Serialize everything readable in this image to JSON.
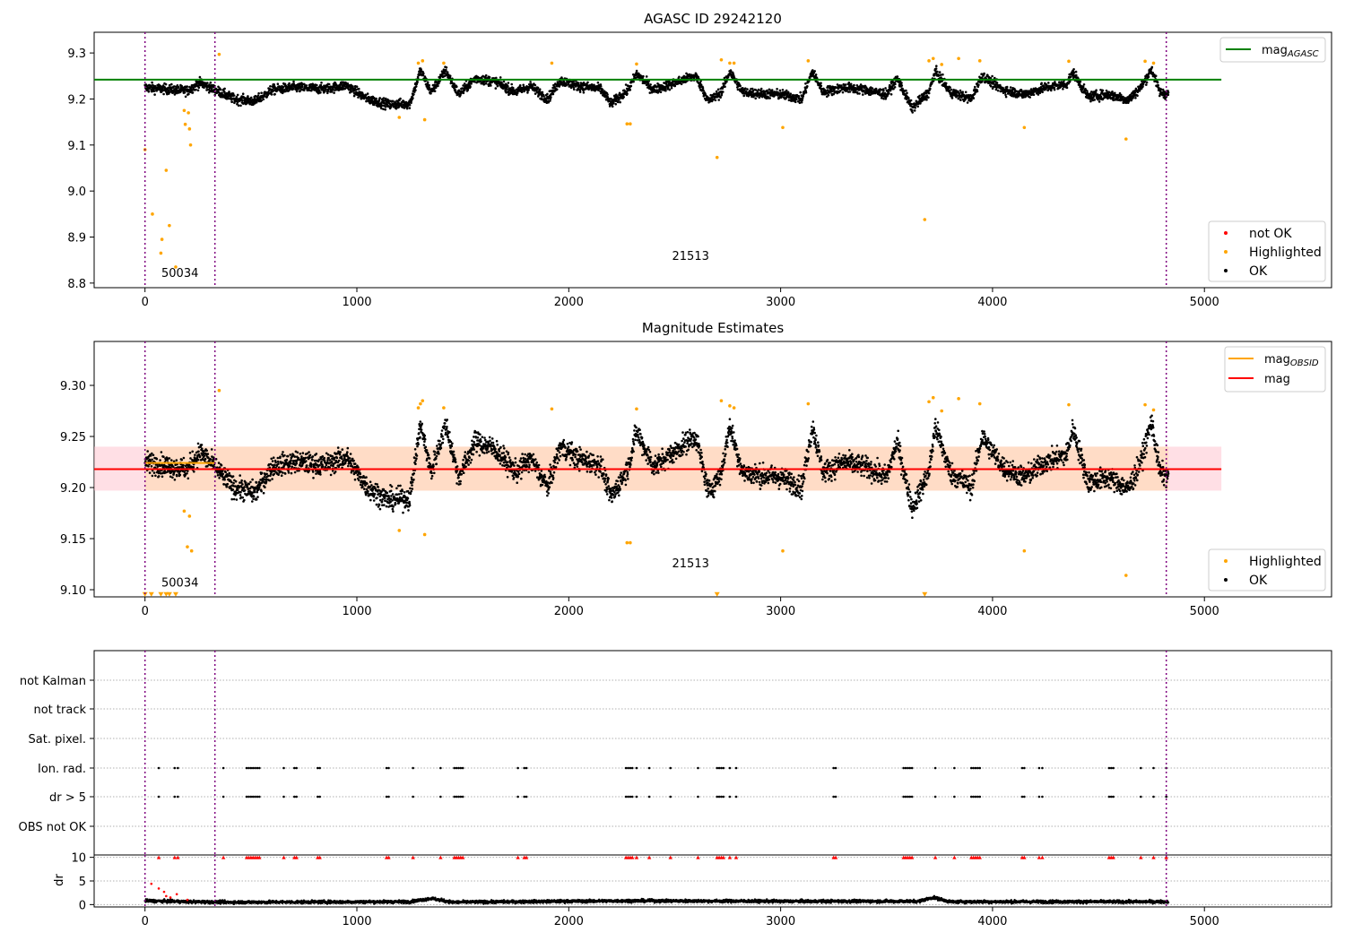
{
  "colors": {
    "ok": "#000000",
    "highlighted": "#ffa500",
    "not_ok": "#ff0000",
    "agasc_line": "#008000",
    "mag_line": "#ff0000",
    "mag_obsid_line": "#ffa500",
    "band_fill": "#ffc0cb",
    "band_inner_fill": "#ffdab9",
    "obsid_boundary": "#800080",
    "grid": "#b0b0b0"
  },
  "chart_data": [
    {
      "id": "agasc_panel",
      "type": "scatter",
      "title": "AGASC ID 29242120",
      "xlabel": "",
      "ylabel": "",
      "xlim": [
        -240,
        5600
      ],
      "ylim": [
        8.79,
        9.345
      ],
      "xticks": [
        0,
        1000,
        2000,
        3000,
        4000,
        5000
      ],
      "xtick_labels": [
        "0",
        "1000",
        "2000",
        "3000",
        "4000",
        "5000"
      ],
      "yticks": [
        8.8,
        8.9,
        9.0,
        9.1,
        9.2,
        9.3
      ],
      "ytick_labels": [
        "8.8",
        "8.9",
        "9.0",
        "9.1",
        "9.2",
        "9.3"
      ],
      "hline": {
        "y": 9.242,
        "x_range": [
          -240,
          5080
        ],
        "label": "mag",
        "label_sub": "AGASC"
      },
      "obsid_boundaries": [
        0,
        330,
        4820
      ],
      "obsid_labels": [
        {
          "text": "50034",
          "x": 165,
          "y": 8.813
        },
        {
          "text": "21513",
          "x": 2575,
          "y": 8.85
        }
      ],
      "legend_upper": {
        "placement": "upper-right",
        "entries": [
          {
            "label": "mag",
            "sub": "AGASC",
            "kind": "line"
          }
        ]
      },
      "legend_lower": {
        "placement": "lower-right",
        "entries": [
          {
            "label": "not OK",
            "kind": "dot",
            "color_key": "not_ok"
          },
          {
            "label": "Highlighted",
            "kind": "dot",
            "color_key": "highlighted"
          },
          {
            "label": "OK",
            "kind": "dot",
            "color_key": "ok"
          }
        ]
      },
      "ok_trend": {
        "x_range": [
          0,
          4830
        ],
        "knots": [
          [
            0,
            9.225
          ],
          [
            80,
            9.222
          ],
          [
            200,
            9.218
          ],
          [
            260,
            9.235
          ],
          [
            330,
            9.22
          ],
          [
            420,
            9.2
          ],
          [
            520,
            9.195
          ],
          [
            600,
            9.22
          ],
          [
            700,
            9.225
          ],
          [
            850,
            9.222
          ],
          [
            950,
            9.23
          ],
          [
            1050,
            9.2
          ],
          [
            1150,
            9.188
          ],
          [
            1250,
            9.19
          ],
          [
            1300,
            9.262
          ],
          [
            1350,
            9.215
          ],
          [
            1420,
            9.262
          ],
          [
            1480,
            9.21
          ],
          [
            1560,
            9.245
          ],
          [
            1650,
            9.238
          ],
          [
            1750,
            9.215
          ],
          [
            1820,
            9.228
          ],
          [
            1900,
            9.2
          ],
          [
            1960,
            9.24
          ],
          [
            2050,
            9.228
          ],
          [
            2150,
            9.222
          ],
          [
            2200,
            9.19
          ],
          [
            2280,
            9.22
          ],
          [
            2320,
            9.255
          ],
          [
            2400,
            9.22
          ],
          [
            2500,
            9.235
          ],
          [
            2560,
            9.245
          ],
          [
            2600,
            9.25
          ],
          [
            2660,
            9.195
          ],
          [
            2720,
            9.215
          ],
          [
            2760,
            9.26
          ],
          [
            2820,
            9.215
          ],
          [
            2900,
            9.212
          ],
          [
            3000,
            9.21
          ],
          [
            3100,
            9.2
          ],
          [
            3150,
            9.26
          ],
          [
            3200,
            9.215
          ],
          [
            3300,
            9.225
          ],
          [
            3400,
            9.22
          ],
          [
            3500,
            9.21
          ],
          [
            3550,
            9.245
          ],
          [
            3620,
            9.18
          ],
          [
            3700,
            9.215
          ],
          [
            3730,
            9.26
          ],
          [
            3800,
            9.215
          ],
          [
            3900,
            9.2
          ],
          [
            3950,
            9.25
          ],
          [
            4050,
            9.22
          ],
          [
            4150,
            9.21
          ],
          [
            4250,
            9.225
          ],
          [
            4350,
            9.232
          ],
          [
            4380,
            9.258
          ],
          [
            4450,
            9.205
          ],
          [
            4550,
            9.21
          ],
          [
            4640,
            9.198
          ],
          [
            4700,
            9.225
          ],
          [
            4750,
            9.265
          ],
          [
            4790,
            9.215
          ],
          [
            4830,
            9.21
          ]
        ],
        "noise": 0.02
      },
      "highlighted_points": [
        [
          0,
          9.09
        ],
        [
          35,
          8.95
        ],
        [
          75,
          8.865
        ],
        [
          80,
          8.895
        ],
        [
          100,
          9.045
        ],
        [
          115,
          8.925
        ],
        [
          145,
          8.835
        ],
        [
          185,
          9.175
        ],
        [
          190,
          9.145
        ],
        [
          205,
          9.17
        ],
        [
          210,
          9.135
        ],
        [
          215,
          9.1
        ],
        [
          350,
          9.297
        ],
        [
          1200,
          9.16
        ],
        [
          1290,
          9.278
        ],
        [
          1310,
          9.283
        ],
        [
          1320,
          9.155
        ],
        [
          1410,
          9.278
        ],
        [
          1920,
          9.278
        ],
        [
          2275,
          9.146
        ],
        [
          2290,
          9.146
        ],
        [
          2320,
          9.276
        ],
        [
          2700,
          9.073
        ],
        [
          2720,
          9.285
        ],
        [
          2760,
          9.278
        ],
        [
          2780,
          9.278
        ],
        [
          3010,
          9.138
        ],
        [
          3130,
          9.283
        ],
        [
          3680,
          8.938
        ],
        [
          3700,
          9.283
        ],
        [
          3720,
          9.288
        ],
        [
          3760,
          9.275
        ],
        [
          3840,
          9.288
        ],
        [
          3940,
          9.283
        ],
        [
          4150,
          9.138
        ],
        [
          4360,
          9.282
        ],
        [
          4630,
          9.113
        ],
        [
          4720,
          9.282
        ],
        [
          4760,
          9.278
        ]
      ]
    },
    {
      "id": "magnitude_panel",
      "type": "scatter",
      "title": "Magnitude Estimates",
      "xlabel": "",
      "ylabel": "",
      "xlim": [
        -240,
        5600
      ],
      "ylim": [
        9.093,
        9.343
      ],
      "xticks": [
        0,
        1000,
        2000,
        3000,
        4000,
        5000
      ],
      "xtick_labels": [
        "0",
        "1000",
        "2000",
        "3000",
        "4000",
        "5000"
      ],
      "yticks": [
        9.1,
        9.15,
        9.2,
        9.25,
        9.3
      ],
      "ytick_labels": [
        "9.10",
        "9.15",
        "9.20",
        "9.25",
        "9.30"
      ],
      "hline": {
        "y": 9.218,
        "x_range": [
          -240,
          5080
        ],
        "label": "mag"
      },
      "band": {
        "y_low": 9.197,
        "y_high": 9.24,
        "x_range": [
          -240,
          5080
        ],
        "inner_x_range": [
          0,
          4830
        ]
      },
      "obsid_segments": [
        {
          "y": 9.224,
          "x_range": [
            0,
            330
          ]
        },
        {
          "y": 9.218,
          "x_range": [
            330,
            4820
          ]
        }
      ],
      "obsid_boundaries": [
        0,
        330,
        4820
      ],
      "obsid_labels": [
        {
          "text": "50034",
          "x": 165,
          "y": 9.103
        },
        {
          "text": "21513",
          "x": 2575,
          "y": 9.122
        }
      ],
      "legend_upper": {
        "placement": "upper-right",
        "entries": [
          {
            "label": "mag",
            "sub": "OBSID",
            "kind": "line",
            "color_key": "mag_obsid_line"
          },
          {
            "label": "mag",
            "kind": "line",
            "color_key": "mag_line"
          }
        ]
      },
      "legend_lower": {
        "placement": "lower-right",
        "entries": [
          {
            "label": "Highlighted",
            "kind": "dot",
            "color_key": "highlighted"
          },
          {
            "label": "OK",
            "kind": "dot",
            "color_key": "ok"
          }
        ]
      },
      "highlighted_points": [
        [
          185,
          9.177
        ],
        [
          200,
          9.142
        ],
        [
          210,
          9.172
        ],
        [
          220,
          9.138
        ],
        [
          350,
          9.295
        ],
        [
          1200,
          9.158
        ],
        [
          1290,
          9.278
        ],
        [
          1300,
          9.282
        ],
        [
          1310,
          9.285
        ],
        [
          1320,
          9.154
        ],
        [
          1410,
          9.278
        ],
        [
          1920,
          9.277
        ],
        [
          2275,
          9.146
        ],
        [
          2290,
          9.146
        ],
        [
          2320,
          9.277
        ],
        [
          2720,
          9.285
        ],
        [
          2760,
          9.28
        ],
        [
          2780,
          9.278
        ],
        [
          3010,
          9.138
        ],
        [
          3130,
          9.282
        ],
        [
          3700,
          9.284
        ],
        [
          3720,
          9.288
        ],
        [
          3760,
          9.275
        ],
        [
          3840,
          9.287
        ],
        [
          3940,
          9.282
        ],
        [
          4150,
          9.138
        ],
        [
          4360,
          9.281
        ],
        [
          4630,
          9.114
        ],
        [
          4720,
          9.281
        ],
        [
          4760,
          9.276
        ]
      ],
      "offscale_markers": [
        [
          0,
          9.095
        ],
        [
          30,
          9.095
        ],
        [
          75,
          9.095
        ],
        [
          100,
          9.095
        ],
        [
          115,
          9.095
        ],
        [
          145,
          9.095
        ],
        [
          2700,
          9.095
        ],
        [
          3680,
          9.095
        ]
      ]
    },
    {
      "id": "flags_panel",
      "type": "scatter",
      "title": "",
      "xlabel": "",
      "ylabel": "",
      "xlim": [
        -240,
        5600
      ],
      "categories": [
        "not Kalman",
        "not track",
        "Sat. pixel.",
        "Ion. rad.",
        "dr > 5",
        "OBS not OK"
      ],
      "obsid_boundaries": [
        0,
        330,
        4820
      ],
      "flag_events": {
        "Ion. rad.": [
          65,
          140,
          155,
          370,
          480,
          490,
          500,
          510,
          520,
          530,
          540,
          655,
          705,
          715,
          815,
          825,
          1140,
          1150,
          1265,
          1395,
          1460,
          1470,
          1480,
          1490,
          1500,
          1760,
          1790,
          1800,
          2270,
          2280,
          2290,
          2300,
          2320,
          2380,
          2480,
          2610,
          2700,
          2710,
          2720,
          2730,
          2760,
          2790,
          3250,
          3260,
          3580,
          3590,
          3600,
          3610,
          3620,
          3730,
          3820,
          3900,
          3910,
          3920,
          3930,
          3940,
          4140,
          4150,
          4220,
          4235,
          4550,
          4560,
          4570,
          4700,
          4760,
          4820
        ],
        "dr > 5": [
          65,
          140,
          155,
          370,
          480,
          490,
          500,
          510,
          520,
          530,
          540,
          655,
          705,
          715,
          815,
          825,
          1140,
          1150,
          1265,
          1395,
          1460,
          1470,
          1480,
          1490,
          1500,
          1760,
          1790,
          1800,
          2270,
          2280,
          2290,
          2300,
          2320,
          2380,
          2480,
          2610,
          2700,
          2710,
          2720,
          2730,
          2760,
          2790,
          3250,
          3260,
          3580,
          3590,
          3600,
          3610,
          3620,
          3730,
          3820,
          3900,
          3910,
          3920,
          3930,
          3940,
          4140,
          4150,
          4220,
          4235,
          4550,
          4560,
          4570,
          4700,
          4760,
          4820
        ]
      }
    },
    {
      "id": "dr_panel",
      "type": "scatter",
      "title": "",
      "xlabel": "",
      "ylabel": "dr",
      "xlim": [
        -240,
        5600
      ],
      "ylim": [
        -0.5,
        10.5
      ],
      "xticks": [
        0,
        1000,
        2000,
        3000,
        4000,
        5000
      ],
      "xtick_labels": [
        "0",
        "1000",
        "2000",
        "3000",
        "4000",
        "5000"
      ],
      "yticks": [
        0,
        5,
        10
      ],
      "ytick_labels": [
        "0",
        "5",
        "10"
      ],
      "obsid_boundaries": [
        0,
        330,
        4820
      ],
      "ok_trend": {
        "x_range": [
          0,
          4830
        ],
        "knots": [
          [
            0,
            0.8
          ],
          [
            200,
            0.6
          ],
          [
            400,
            0.5
          ],
          [
            1250,
            0.6
          ],
          [
            1350,
            1.3
          ],
          [
            1450,
            0.5
          ],
          [
            2300,
            0.8
          ],
          [
            3000,
            0.7
          ],
          [
            3650,
            0.7
          ],
          [
            3720,
            1.5
          ],
          [
            3800,
            0.6
          ],
          [
            4830,
            0.6
          ]
        ],
        "noise": 0.6
      },
      "early_points": [
        [
          30,
          4.4
        ],
        [
          65,
          3.4
        ],
        [
          90,
          2.7
        ],
        [
          100,
          1.8
        ],
        [
          120,
          1.5
        ],
        [
          150,
          2.2
        ],
        [
          200,
          1.0
        ]
      ],
      "not_ok_tick_value": 10
    }
  ]
}
